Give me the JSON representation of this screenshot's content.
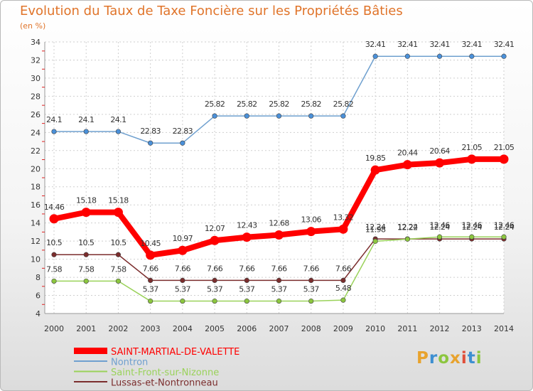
{
  "header": {
    "title": "Evolution du Taux de Taxe Foncière sur les Propriétés Bâties",
    "subtitle": "(en %)"
  },
  "logo": {
    "text": "Proxiti",
    "colors": [
      "#e8a32e",
      "#3d8fd1",
      "#8cc63f",
      "#e8a32e",
      "#e04e39",
      "#3d8fd1",
      "#8cc63f"
    ]
  },
  "chart_data": {
    "type": "line",
    "title": "Evolution du Taux de Taxe Foncière sur les Propriétés Bâties",
    "ylabel": "(en %)",
    "xlabel": "",
    "categories": [
      "2000",
      "2001",
      "2002",
      "2003",
      "2004",
      "2005",
      "2006",
      "2007",
      "2008",
      "2009",
      "2010",
      "2011",
      "2012",
      "2013",
      "2014"
    ],
    "ylim": [
      4,
      34
    ],
    "yticks": [
      4,
      6,
      8,
      10,
      12,
      14,
      16,
      18,
      20,
      22,
      24,
      26,
      28,
      30,
      32,
      34
    ],
    "grid": true,
    "legend_position": "bottom-left",
    "series": [
      {
        "name": "Nontron",
        "color": "#6fa0cf",
        "marker": "#4a90d9",
        "bold": false,
        "values": [
          24.1,
          24.1,
          24.1,
          22.83,
          22.83,
          25.82,
          25.82,
          25.82,
          25.82,
          25.82,
          32.41,
          32.41,
          32.41,
          32.41,
          32.41
        ],
        "labels": [
          "24.1",
          "24.1",
          "24.1",
          "22.83",
          "22.83",
          "25.82",
          "25.82",
          "25.82",
          "25.82",
          "25.82",
          "32.41",
          "32.41",
          "32.41",
          "32.41",
          "32.41"
        ]
      },
      {
        "name": "SAINT-MARTIAL-DE-VALETTE",
        "color": "#ff0000",
        "marker": "#ff0000",
        "bold": true,
        "values": [
          14.46,
          15.18,
          15.18,
          10.45,
          10.97,
          12.07,
          12.43,
          12.68,
          13.06,
          13.32,
          19.85,
          20.44,
          20.64,
          21.05,
          21.05
        ],
        "labels": [
          "14.46",
          "15.18",
          "15.18",
          "10.45",
          "10.97",
          "12.07",
          "12.43",
          "12.68",
          "13.06",
          "13.32",
          "19.85",
          "20.44",
          "20.64",
          "21.05",
          "21.05"
        ]
      },
      {
        "name": "Lussas-et-Nontronneau",
        "color": "#7b2d2d",
        "marker": "#7b2d2d",
        "bold": false,
        "values": [
          10.5,
          10.5,
          10.5,
          7.66,
          7.66,
          7.66,
          7.66,
          7.66,
          7.66,
          7.66,
          12.24,
          12.24,
          12.24,
          12.24,
          12.24
        ],
        "labels": [
          "10.5",
          "10.5",
          "10.5",
          "7.66",
          "7.66",
          "7.66",
          "7.66",
          "7.66",
          "7.66",
          "7.66",
          "12.24",
          "12.24",
          "12.24",
          "12.24",
          "12.24"
        ]
      },
      {
        "name": "Saint-Front-sur-Nizonne",
        "color": "#9ad25a",
        "marker": "#8cc63f",
        "bold": false,
        "values": [
          7.58,
          7.58,
          7.58,
          5.37,
          5.37,
          5.37,
          5.37,
          5.37,
          5.37,
          5.48,
          11.98,
          12.22,
          12.46,
          12.46,
          12.46
        ],
        "labels": [
          "7.58",
          "7.58",
          "7.58",
          "5.37",
          "5.37",
          "5.37",
          "5.37",
          "5.37",
          "5.37",
          "5.48",
          "11.98",
          "12.22",
          "12.46",
          "12.46",
          "12.46"
        ]
      }
    ],
    "legend": [
      {
        "name": "SAINT-MARTIAL-DE-VALETTE",
        "color": "#ff0000",
        "bold": true
      },
      {
        "name": "Nontron",
        "color": "#6fa0cf",
        "bold": false
      },
      {
        "name": "Saint-Front-sur-Nizonne",
        "color": "#9ad25a",
        "bold": false
      },
      {
        "name": "Lussas-et-Nontronneau",
        "color": "#7b2d2d",
        "bold": false
      }
    ]
  }
}
